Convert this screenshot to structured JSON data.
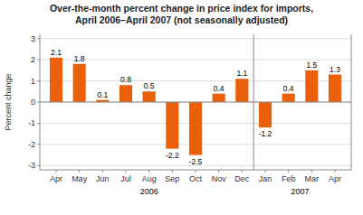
{
  "chart_data": {
    "type": "bar",
    "title": "Over-the-month percent change in price index for imports,",
    "subtitle": "April 2006–April 2007 (not seasonally adjusted)",
    "y_label": "Percent change",
    "categories": [
      "Apr",
      "May",
      "Jun",
      "Jul",
      "Aug",
      "Sep",
      "Oct",
      "Nov",
      "Dec",
      "Jan",
      "Feb",
      "Mar",
      "Apr"
    ],
    "values": [
      2.1,
      1.8,
      0.1,
      0.8,
      0.5,
      -2.2,
      -2.5,
      0.4,
      1.1,
      -1.2,
      0.4,
      1.5,
      1.3
    ],
    "color": "#e8610a",
    "ylim": [
      -3.2,
      3.2
    ],
    "yticks": [
      -3,
      -2,
      -1,
      0,
      1,
      2,
      3
    ],
    "grid": true,
    "data_labels": true,
    "annotations": [
      {
        "text": "2006",
        "x": 4.0
      },
      {
        "text": "2007",
        "x": 10.5
      },
      {
        "type": "vline",
        "x": 8.5
      }
    ]
  }
}
